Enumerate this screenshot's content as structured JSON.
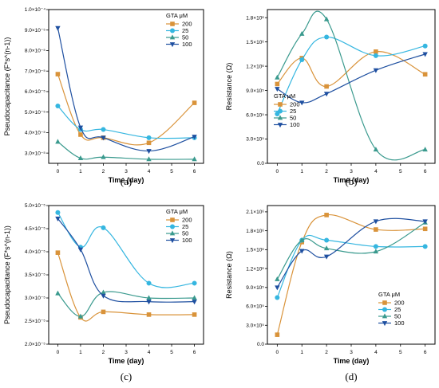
{
  "colors": {
    "200": "#D9933A",
    "25": "#35B6E0",
    "50": "#3A9A8E",
    "100": "#1E4FA0"
  },
  "chart_data": [
    {
      "id": "a",
      "type": "line",
      "caption": "(a)",
      "xlabel": "Time (day)",
      "ylabel": "Pseudocapacitance (F*s^(n-1))",
      "xlim": [
        -0.4,
        6.4
      ],
      "ylim": [
        2.5e-05,
        0.0001
      ],
      "xticks": [
        0,
        1,
        2,
        3,
        4,
        5,
        6
      ],
      "xtick_labels": [
        "0",
        "1",
        "2",
        "3",
        "4",
        "5",
        "6"
      ],
      "yticks": [
        3e-05,
        4e-05,
        5e-05,
        6e-05,
        7e-05,
        8e-05,
        9e-05,
        0.0001
      ],
      "ytick_labels": [
        "3.0×10⁻⁵",
        "4.0×10⁻⁵",
        "5.0×10⁻⁵",
        "6.0×10⁻⁵",
        "7.0×10⁻⁵",
        "8.0×10⁻⁵",
        "9.0×10⁻⁵",
        "1.0×10⁻⁴"
      ],
      "x": [
        0,
        1,
        2,
        4,
        6
      ],
      "legend_title": "GTA μM",
      "legend_position": "top-right",
      "series": [
        {
          "name": "200",
          "marker": "square",
          "values": [
            6.85e-05,
            3.9e-05,
            3.75e-05,
            3.5e-05,
            5.45e-05
          ]
        },
        {
          "name": "25",
          "marker": "circle",
          "values": [
            5.3e-05,
            4.15e-05,
            4.15e-05,
            3.75e-05,
            3.75e-05
          ]
        },
        {
          "name": "50",
          "marker": "triangle",
          "values": [
            3.55e-05,
            2.75e-05,
            2.8e-05,
            2.7e-05,
            2.7e-05
          ]
        },
        {
          "name": "100",
          "marker": "triangle-down",
          "values": [
            9.1e-05,
            4.25e-05,
            3.75e-05,
            3.1e-05,
            3.8e-05
          ]
        }
      ]
    },
    {
      "id": "b",
      "type": "line",
      "caption": "(b)",
      "xlabel": "Time (day)",
      "ylabel": "Resistance (Ω)",
      "xlim": [
        -0.4,
        6.4
      ],
      "ylim": [
        0,
        1900000.0
      ],
      "xticks": [
        0,
        1,
        2,
        3,
        4,
        5,
        6
      ],
      "xtick_labels": [
        "0",
        "1",
        "2",
        "3",
        "4",
        "5",
        "6"
      ],
      "yticks": [
        0,
        300000.0,
        600000.0,
        900000.0,
        1200000.0,
        1500000.0,
        1800000.0
      ],
      "ytick_labels": [
        "0.0",
        "3.0×10⁵",
        "6.0×10⁵",
        "9.0×10⁵",
        "1.2×10⁶",
        "1.5×10⁶",
        "1.8×10⁶"
      ],
      "x": [
        0,
        1,
        2,
        4,
        6
      ],
      "legend_title": "GTA μM",
      "legend_position": "center-left",
      "series": [
        {
          "name": "200",
          "marker": "square",
          "values": [
            980000.0,
            1300000.0,
            950000.0,
            1380000.0,
            1100000.0
          ]
        },
        {
          "name": "25",
          "marker": "circle",
          "values": [
            610000.0,
            1280000.0,
            1560000.0,
            1330000.0,
            1450000.0
          ]
        },
        {
          "name": "50",
          "marker": "triangle",
          "values": [
            1060000.0,
            1600000.0,
            1780000.0,
            170000.0,
            170000.0
          ]
        },
        {
          "name": "100",
          "marker": "triangle-down",
          "values": [
            920000.0,
            750000.0,
            860000.0,
            1150000.0,
            1350000.0
          ]
        }
      ]
    },
    {
      "id": "c",
      "type": "line",
      "caption": "(c)",
      "xlabel": "Time (day)",
      "ylabel": "Pseudocapacitance (F*s^(n-1))",
      "xlim": [
        -0.4,
        6.4
      ],
      "ylim": [
        2e-05,
        5e-05
      ],
      "xticks": [
        0,
        1,
        2,
        3,
        4,
        5,
        6
      ],
      "xtick_labels": [
        "0",
        "1",
        "2",
        "3",
        "4",
        "5",
        "6"
      ],
      "yticks": [
        2e-05,
        2.5e-05,
        3e-05,
        3.5e-05,
        4e-05,
        4.5e-05,
        5e-05
      ],
      "ytick_labels": [
        "2.0×10⁻⁵",
        "2.5×10⁻⁵",
        "3.0×10⁻⁵",
        "3.5×10⁻⁵",
        "4.0×10⁻⁵",
        "4.5×10⁻⁵",
        "5.0×10⁻⁵"
      ],
      "x": [
        0,
        1,
        2,
        4,
        6
      ],
      "legend_title": "GTA μM",
      "legend_position": "top-right",
      "series": [
        {
          "name": "200",
          "marker": "square",
          "values": [
            3.98e-05,
            2.58e-05,
            2.7e-05,
            2.64e-05,
            2.64e-05
          ]
        },
        {
          "name": "25",
          "marker": "circle",
          "values": [
            4.85e-05,
            4.1e-05,
            4.52e-05,
            3.32e-05,
            3.32e-05
          ]
        },
        {
          "name": "50",
          "marker": "triangle",
          "values": [
            3.1e-05,
            2.6e-05,
            3.12e-05,
            3e-05,
            3e-05
          ]
        },
        {
          "name": "100",
          "marker": "triangle-down",
          "values": [
            4.72e-05,
            4.05e-05,
            3.05e-05,
            2.92e-05,
            2.92e-05
          ]
        }
      ]
    },
    {
      "id": "d",
      "type": "line",
      "caption": "(d)",
      "xlabel": "Time (day)",
      "ylabel": "Resistance (Ω)",
      "xlim": [
        -0.4,
        6.4
      ],
      "ylim": [
        0,
        2200000.0
      ],
      "xticks": [
        0,
        1,
        2,
        3,
        4,
        5,
        6
      ],
      "xtick_labels": [
        "0",
        "1",
        "2",
        "3",
        "4",
        "5",
        "6"
      ],
      "yticks": [
        0,
        300000.0,
        600000.0,
        900000.0,
        1200000.0,
        1500000.0,
        1800000.0,
        2100000.0
      ],
      "ytick_labels": [
        "0.0",
        "3.0×10⁵",
        "6.0×10⁵",
        "9.0×10⁵",
        "1.2×10⁶",
        "1.5×10⁶",
        "1.8×10⁶",
        "2.1×10⁶"
      ],
      "x": [
        0,
        1,
        2,
        4,
        6
      ],
      "legend_title": "GTA μM",
      "legend_position": "bottom-right",
      "series": [
        {
          "name": "200",
          "marker": "square",
          "values": [
            150000.0,
            1620000.0,
            2050000.0,
            1820000.0,
            1830000.0
          ]
        },
        {
          "name": "25",
          "marker": "circle",
          "values": [
            740000.0,
            1650000.0,
            1650000.0,
            1550000.0,
            1550000.0
          ]
        },
        {
          "name": "50",
          "marker": "triangle",
          "values": [
            1030000.0,
            1650000.0,
            1520000.0,
            1470000.0,
            1930000.0
          ]
        },
        {
          "name": "100",
          "marker": "triangle-down",
          "values": [
            900000.0,
            1480000.0,
            1390000.0,
            1950000.0,
            1950000.0
          ]
        }
      ]
    }
  ]
}
